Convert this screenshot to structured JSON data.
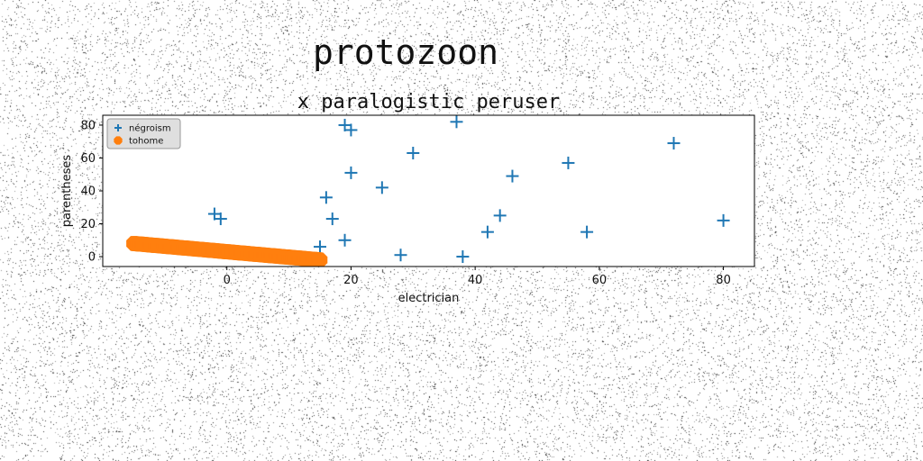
{
  "figure": {
    "suptitle": "protozoon"
  },
  "chart_data": {
    "type": "scatter",
    "title": "x paralogistic peruser",
    "xlabel": "electrician",
    "ylabel": "parentheses",
    "xlim": [
      -20,
      85
    ],
    "ylim": [
      -6,
      86
    ],
    "xticks": [
      0,
      20,
      40,
      60,
      80
    ],
    "yticks": [
      0,
      20,
      40,
      60,
      80
    ],
    "grid": false,
    "legend_position": "top-left",
    "series": [
      {
        "name": "négroism",
        "marker": "plus",
        "color": "#1f77b4",
        "points": [
          [
            -2,
            26
          ],
          [
            -1,
            23
          ],
          [
            15,
            6
          ],
          [
            16,
            36
          ],
          [
            17,
            23
          ],
          [
            19,
            80
          ],
          [
            19,
            10
          ],
          [
            20,
            77
          ],
          [
            20,
            51
          ],
          [
            25,
            42
          ],
          [
            28,
            1
          ],
          [
            30,
            63
          ],
          [
            37,
            82
          ],
          [
            38,
            0
          ],
          [
            42,
            15
          ],
          [
            44,
            25
          ],
          [
            46,
            49
          ],
          [
            55,
            57
          ],
          [
            58,
            15
          ],
          [
            72,
            69
          ],
          [
            80,
            22
          ]
        ]
      },
      {
        "name": "tohome",
        "marker": "octagon",
        "color": "#ff7f0e",
        "x_start": -15,
        "x_end": 15,
        "y_start": 8,
        "y_end": -2,
        "count": 160
      }
    ]
  }
}
